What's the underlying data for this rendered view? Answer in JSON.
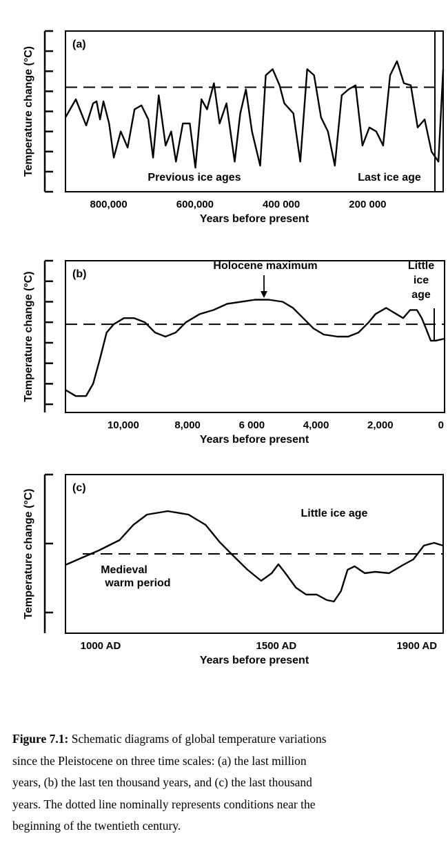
{
  "chart_data": [
    {
      "type": "line",
      "panel": "(a)",
      "color": "#000000",
      "x": [
        900000,
        876000,
        852000,
        836000,
        828000,
        820000,
        812000,
        799000,
        788000,
        772000,
        756000,
        740000,
        724000,
        708000,
        697000,
        684000,
        668000,
        655000,
        644000,
        628000,
        612000,
        599000,
        585000,
        572000,
        556000,
        543000,
        527000,
        508000,
        495000,
        482000,
        468000,
        449000,
        436000,
        420000,
        404000,
        393000,
        372000,
        356000,
        340000,
        324000,
        308000,
        292000,
        276000,
        260000,
        244000,
        228000,
        212000,
        196000,
        180000,
        164000,
        148000,
        132000,
        116000,
        100000,
        84000,
        68000,
        52000,
        36000,
        25000
      ],
      "values": [
        3.7,
        4.6,
        3.3,
        4.4,
        4.5,
        3.6,
        4.5,
        3.4,
        1.7,
        3.0,
        2.2,
        4.1,
        4.3,
        3.6,
        1.7,
        4.8,
        2.3,
        3.0,
        1.5,
        3.4,
        3.4,
        1.2,
        4.6,
        4.1,
        5.4,
        3.4,
        4.4,
        1.5,
        3.9,
        5.1,
        3.0,
        1.3,
        5.8,
        6.1,
        5.3,
        4.4,
        3.9,
        1.5,
        6.1,
        5.8,
        3.7,
        3.0,
        1.3,
        4.8,
        5.1,
        5.3,
        2.3,
        3.2,
        3.0,
        2.3,
        5.8,
        6.5,
        5.4,
        5.3,
        3.2,
        3.6,
        2.0,
        1.5,
        6.1
      ],
      "reference_line": 5.2,
      "xlim": [
        900000,
        25000
      ],
      "xticks": [
        {
          "value": 800000,
          "label": "800,000"
        },
        {
          "value": 600000,
          "label": "600,000"
        },
        {
          "value": 400000,
          "label": "400 000"
        },
        {
          "value": 200000,
          "label": "200 000"
        }
      ],
      "ylim": [
        0,
        8
      ],
      "yticks": [
        0,
        1,
        2,
        3,
        4,
        5,
        6,
        7,
        8
      ],
      "x_label": "Years before present",
      "y_label": "Temperature change (°C)",
      "annotations": [
        {
          "text": [
            "Previous ice ages"
          ]
        },
        {
          "text": [
            "Last ice age"
          ]
        }
      ]
    },
    {
      "type": "line",
      "panel": "(b)",
      "color": "#000000",
      "x": [
        11800,
        11480,
        11160,
        10940,
        10730,
        10520,
        10300,
        9980,
        9660,
        9330,
        9010,
        8690,
        8370,
        8050,
        7620,
        7190,
        6760,
        6330,
        5900,
        5470,
        5040,
        4720,
        4400,
        4080,
        3760,
        3330,
        3000,
        2680,
        2360,
        2150,
        1820,
        1500,
        1290,
        1070,
        860,
        710,
        580,
        430,
        280,
        0
      ],
      "values": [
        0.7,
        0.4,
        0.4,
        1.0,
        2.2,
        3.5,
        3.9,
        4.2,
        4.2,
        4.0,
        3.5,
        3.3,
        3.5,
        4.0,
        4.4,
        4.6,
        4.9,
        5.0,
        5.1,
        5.1,
        5.0,
        4.7,
        4.2,
        3.7,
        3.4,
        3.3,
        3.3,
        3.5,
        4.0,
        4.4,
        4.7,
        4.4,
        4.2,
        4.6,
        4.6,
        4.2,
        3.7,
        3.1,
        3.1,
        3.2
      ],
      "reference_line": 3.9,
      "xlim": [
        11800,
        0
      ],
      "xticks": [
        {
          "value": 10000,
          "label": "10,000"
        },
        {
          "value": 8000,
          "label": "8,000"
        },
        {
          "value": 6000,
          "label": "6 000"
        },
        {
          "value": 4000,
          "label": "4,000"
        },
        {
          "value": 2000,
          "label": "2,000"
        },
        0
      ],
      "ylim": [
        -0.4,
        7
      ],
      "yticks": [
        0,
        1,
        2,
        3,
        4,
        5,
        6,
        7
      ],
      "x_label": "Years before present",
      "y_label": "Temperature change (°C)",
      "annotations": [
        {
          "text": [
            "Holocene maximum"
          ]
        },
        {
          "text": [
            "Little",
            "ice",
            "age"
          ]
        }
      ]
    },
    {
      "type": "line",
      "panel": "(c)",
      "color": "#000000",
      "x": [
        900,
        945,
        995,
        1054,
        1093,
        1132,
        1191,
        1250,
        1299,
        1339,
        1378,
        1418,
        1457,
        1487,
        1506,
        1526,
        1556,
        1585,
        1615,
        1644,
        1664,
        1684,
        1703,
        1723,
        1752,
        1782,
        1821,
        1861,
        1890,
        1920,
        1949,
        1975
      ],
      "values": [
        0.69,
        0.79,
        0.9,
        1.05,
        1.27,
        1.42,
        1.47,
        1.42,
        1.27,
        1.02,
        0.82,
        0.62,
        0.46,
        0.57,
        0.7,
        0.57,
        0.36,
        0.26,
        0.26,
        0.18,
        0.16,
        0.31,
        0.62,
        0.67,
        0.57,
        0.59,
        0.57,
        0.69,
        0.77,
        0.97,
        1.01,
        0.97
      ],
      "reference_line": 0.85,
      "xlim": [
        900,
        1975
      ],
      "xticks": [
        {
          "value": 1000,
          "label": "1000 AD"
        },
        {
          "value": 1500,
          "label": "1500 AD"
        },
        {
          "value": 1900,
          "label": "1900 AD"
        }
      ],
      "ylim": [
        -0.3,
        2
      ],
      "yticks": [
        0,
        1,
        2
      ],
      "x_label": "Years before present",
      "y_label": "Temperature change (°C)",
      "annotations": [
        {
          "text": [
            "Little ice age"
          ]
        },
        {
          "text": [
            "Medieval",
            "warm period"
          ]
        }
      ]
    }
  ],
  "caption": {
    "label": "Figure 7.1:",
    "lines": [
      "Schematic diagrams of global temperature variations",
      "since the Pleistocene on three time scales: (a) the last million",
      "years, (b) the last ten thousand years, and (c) the last thousand",
      "years. The dotted line nominally represents conditions near the",
      "beginning of the twentieth century."
    ]
  }
}
